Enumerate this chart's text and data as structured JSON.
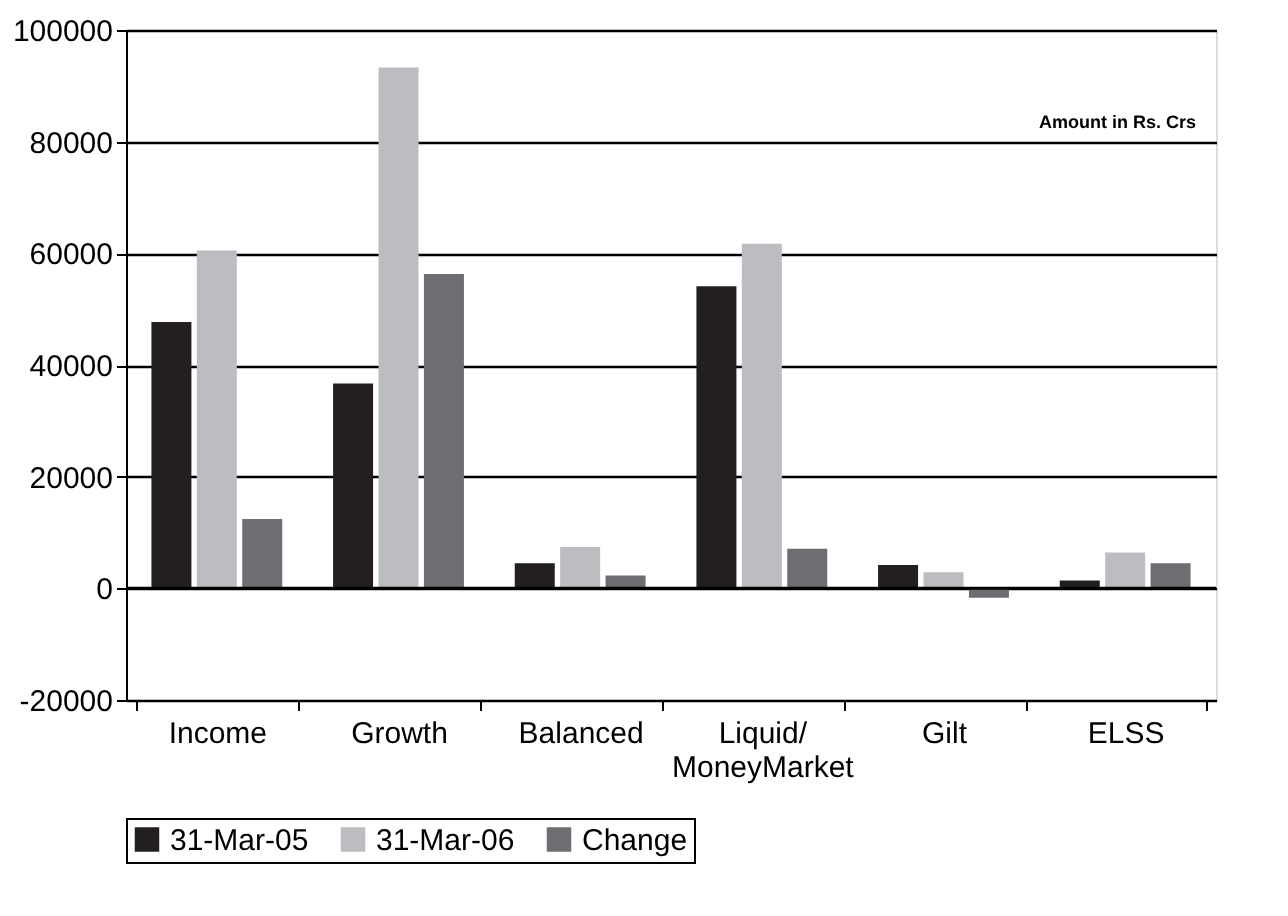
{
  "chart_data": {
    "type": "bar",
    "categories": [
      "Income",
      "Growth",
      "Balanced",
      "Liquid/\nMoneyMarket",
      "Gilt",
      "ELSS"
    ],
    "series": [
      {
        "name": "31-Mar-05",
        "color": "#231f20",
        "values": [
          47700,
          36700,
          4500,
          54100,
          4200,
          1400
        ]
      },
      {
        "name": "31-Mar-06",
        "color": "#bcbdc1",
        "values": [
          60500,
          93300,
          7400,
          61700,
          2900,
          6400
        ]
      },
      {
        "name": "Change",
        "color": "#6d6e71",
        "values": [
          12400,
          56300,
          2300,
          7100,
          -1700,
          4500
        ]
      }
    ],
    "ylim": [
      -20000,
      100000
    ],
    "yticks": [
      -20000,
      0,
      20000,
      40000,
      60000,
      80000,
      100000
    ],
    "grid": "y",
    "legend": "bottom",
    "annotations": [
      "Amount in Rs. Crs"
    ]
  }
}
